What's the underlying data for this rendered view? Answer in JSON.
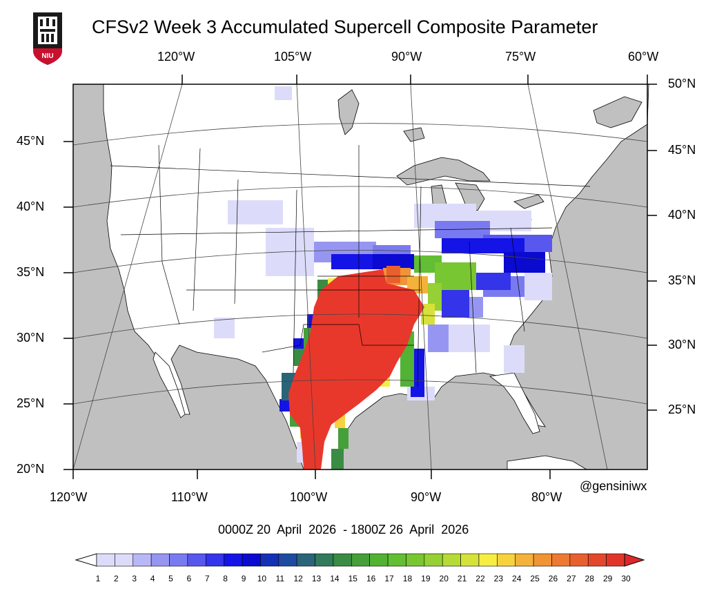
{
  "title": "CFSv2 Week 3 Accumulated Supercell Composite Parameter",
  "logo": {
    "name": "NIU",
    "text": "NIU"
  },
  "credit": "@gensiniwx",
  "valid_period": "0000Z 20  April  2026  - 1800Z 26  April  2026",
  "top_lon_labels": [
    "120°W",
    "105°W",
    "90°W",
    "75°W",
    "60°W"
  ],
  "bottom_lon_labels": [
    "120°W",
    "110°W",
    "100°W",
    "90°W",
    "80°W"
  ],
  "left_lat_labels": [
    "45°N",
    "40°N",
    "35°N",
    "30°N",
    "25°N",
    "20°N"
  ],
  "right_lat_labels": [
    "50°N",
    "45°N",
    "40°N",
    "35°N",
    "30°N",
    "25°N"
  ],
  "colorbar": {
    "labels": [
      "1",
      "2",
      "3",
      "4",
      "5",
      "6",
      "7",
      "8",
      "9",
      "10",
      "11",
      "12",
      "13",
      "14",
      "15",
      "16",
      "17",
      "18",
      "19",
      "20",
      "21",
      "22",
      "23",
      "24",
      "25",
      "26",
      "27",
      "28",
      "29",
      "30"
    ],
    "colors": [
      "#ffffff",
      "#dcdcfa",
      "#b8b8f6",
      "#9696f2",
      "#7a7af0",
      "#5858ee",
      "#3434ea",
      "#1414e6",
      "#0a0ad0",
      "#1430b4",
      "#1e4aa0",
      "#2a6478",
      "#317a5c",
      "#3a8c44",
      "#46a03a",
      "#52b234",
      "#62be32",
      "#78c632",
      "#96d034",
      "#b6da36",
      "#d6e23a",
      "#f6ee42",
      "#f8d23e",
      "#f4b23a",
      "#f09436",
      "#ec7a32",
      "#e8602e",
      "#e4482c",
      "#e0362a",
      "#dc2828"
    ],
    "over_color": "#dc2828",
    "under_color": "#ffffff"
  },
  "colors": {
    "land": "#ffffff",
    "water": "#c0c0c0",
    "borders": "#000000",
    "high_scp": "#e8382c"
  }
}
